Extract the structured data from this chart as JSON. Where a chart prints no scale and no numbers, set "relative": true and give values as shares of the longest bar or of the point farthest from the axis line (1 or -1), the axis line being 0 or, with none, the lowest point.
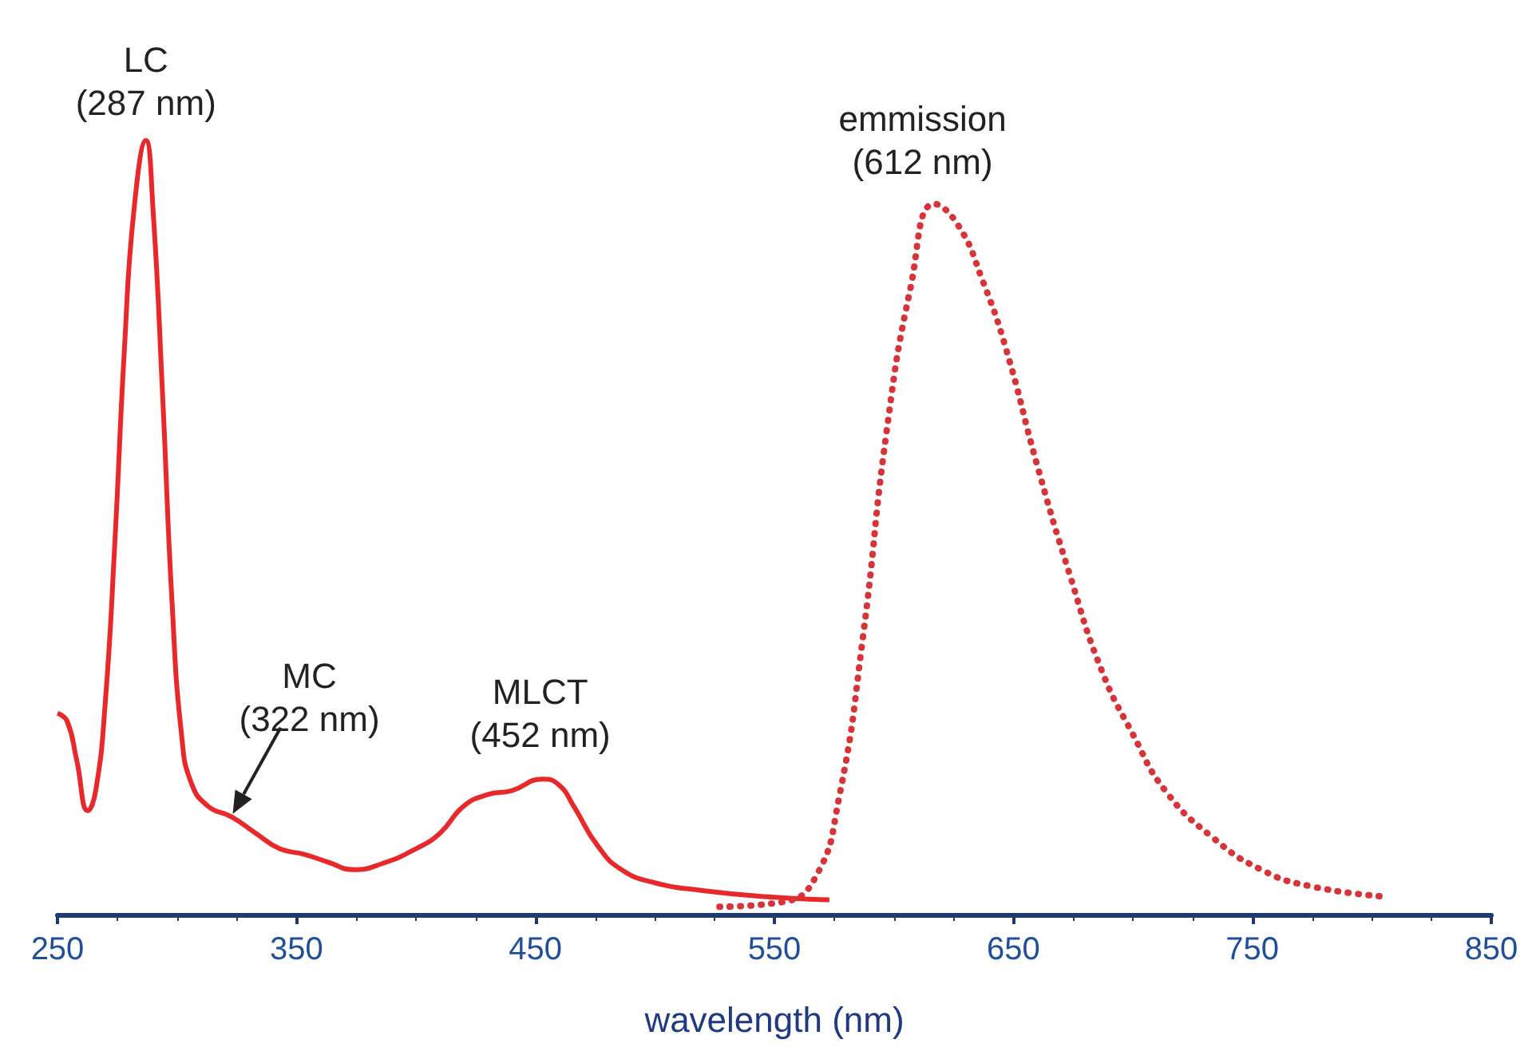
{
  "chart_data": {
    "type": "line",
    "relative": true,
    "xlabel": "wavelength (nm)",
    "xlim": [
      250,
      850
    ],
    "xticks": [
      250,
      350,
      450,
      550,
      650,
      750,
      850
    ],
    "grid": false,
    "marker": "none",
    "series": [
      {
        "color": "#e8282b",
        "line_style": "solid",
        "x": [
          250,
          254,
          258,
          262.7,
          266,
          270,
          274,
          278,
          282,
          287,
          290,
          294,
          298,
          302,
          306,
          313,
          323,
          333,
          343,
          353,
          363,
          374,
          386,
          400,
          410,
          420,
          430,
          440,
          453,
          460,
          466,
          476,
          486,
          500,
          520,
          547,
          573
        ],
        "values": [
          0.26,
          0.25,
          0.2,
          0.134,
          0.16,
          0.274,
          0.48,
          0.73,
          0.91,
          1,
          0.91,
          0.67,
          0.4,
          0.23,
          0.17,
          0.14,
          0.126,
          0.105,
          0.085,
          0.078,
          0.068,
          0.058,
          0.066,
          0.085,
          0.105,
          0.14,
          0.155,
          0.16,
          0.175,
          0.167,
          0.14,
          0.089,
          0.058,
          0.041,
          0.031,
          0.023,
          0.019
        ]
      },
      {
        "color": "#d9333a",
        "line_style": "dotted",
        "x": [
          527,
          553,
          567,
          577,
          587,
          597,
          607,
          617,
          627,
          637,
          647,
          660,
          673.5,
          687,
          700,
          713.6,
          733.6,
          753.7,
          773.7,
          805.8
        ],
        "values": [
          0.01,
          0.016,
          0.047,
          0.15,
          0.357,
          0.625,
          0.81,
          0.918,
          0.89,
          0.82,
          0.73,
          0.58,
          0.44,
          0.315,
          0.233,
          0.16,
          0.099,
          0.058,
          0.037,
          0.023
        ]
      }
    ],
    "annotations": [
      {
        "text": "LC\n(287 nm)",
        "x": 287,
        "y": 1
      },
      {
        "text": "MC\n(322 nm)",
        "x": 322,
        "y": 0.126
      },
      {
        "text": "MLCT\n(452 nm)",
        "x": 452,
        "y": 0.175
      },
      {
        "text": "emmission\n(612 nm)",
        "x": 612,
        "y": 0.87
      }
    ]
  }
}
